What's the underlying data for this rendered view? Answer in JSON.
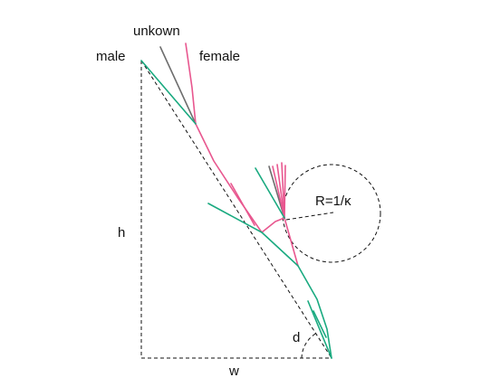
{
  "labels": {
    "male": "male",
    "unknown": "unkown",
    "female": "female",
    "h": "h",
    "w": "w",
    "d": "d",
    "radius": "R=1/κ"
  },
  "colors": {
    "male": "#1aaa80",
    "female": "#e8578f",
    "unknown": "#6e6e6e",
    "construction": "#111111"
  }
}
